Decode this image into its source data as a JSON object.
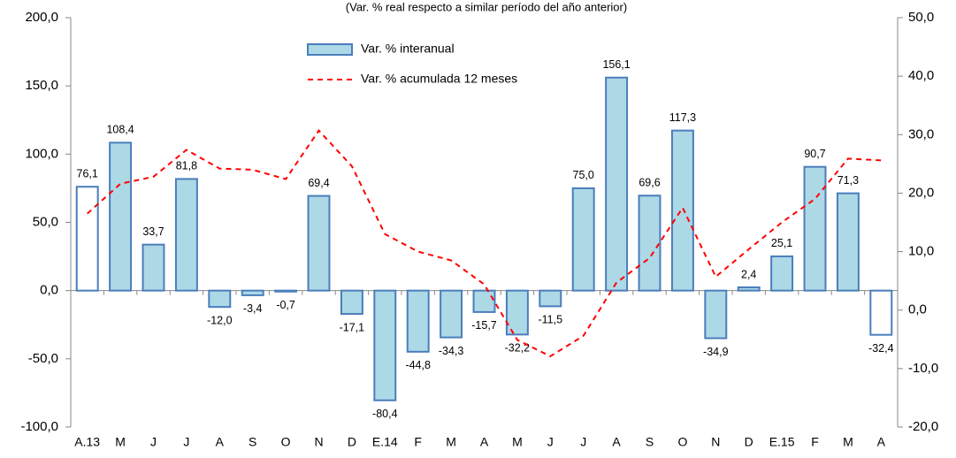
{
  "chart_data": {
    "type": "bar_line",
    "subtitle": "(Var. % real respecto a similar período del año anterior)",
    "categories": [
      "A.13",
      "M",
      "J",
      "J",
      "A",
      "S",
      "O",
      "N",
      "D",
      "E.14",
      "F",
      "M",
      "A",
      "M",
      "J",
      "J",
      "A",
      "S",
      "O",
      "N",
      "D",
      "E.15",
      "F",
      "M",
      "A"
    ],
    "series": [
      {
        "name": "Var. % interanual",
        "type": "bar",
        "color": "#add8e6",
        "edge": "#4a7ebb",
        "colors": [
          "#ffffff",
          "#add8e6",
          "#add8e6",
          "#add8e6",
          "#add8e6",
          "#add8e6",
          "#add8e6",
          "#add8e6",
          "#add8e6",
          "#add8e6",
          "#add8e6",
          "#add8e6",
          "#add8e6",
          "#add8e6",
          "#add8e6",
          "#add8e6",
          "#add8e6",
          "#add8e6",
          "#add8e6",
          "#add8e6",
          "#add8e6",
          "#add8e6",
          "#add8e6",
          "#add8e6",
          "#ffffff"
        ],
        "values": [
          76.1,
          108.4,
          33.7,
          81.8,
          -12.0,
          -3.4,
          -0.7,
          69.4,
          -17.1,
          -80.4,
          -44.8,
          -34.3,
          -15.7,
          -32.2,
          -11.5,
          75.0,
          156.1,
          69.6,
          117.3,
          -34.9,
          2.4,
          25.1,
          90.7,
          71.3,
          -32.4
        ],
        "value_labels": [
          "76,1",
          "108,4",
          "33,7",
          "81,8",
          "-12,0",
          "-3,4",
          "-0,7",
          "69,4",
          "-17,1",
          "-80,4",
          "-44,8",
          "-34,3",
          "-15,7",
          "-32,2",
          "-11,5",
          "75,0",
          "156,1",
          "69,6",
          "117,3",
          "-34,9",
          "2,4",
          "25,1",
          "90,7",
          "71,3",
          "-32,4"
        ]
      },
      {
        "name": "Var. % acumulada 12 meses",
        "type": "line",
        "axis": "y2",
        "color": "#ff0000",
        "line_style": "dashed",
        "values": [
          16.5,
          21.6,
          22.8,
          27.4,
          24.2,
          24.0,
          22.4,
          30.7,
          24.6,
          13.0,
          10.0,
          8.5,
          4.4,
          -5.1,
          -7.9,
          -4.4,
          4.7,
          8.9,
          17.5,
          5.7,
          10.4,
          15.0,
          19.0,
          25.9,
          25.6
        ]
      }
    ],
    "ylim": [
      -100,
      200
    ],
    "yticks": [
      {
        "value": -100,
        "label": "-100,0"
      },
      {
        "value": -50,
        "label": "-50,0"
      },
      {
        "value": 0,
        "label": "0,0"
      },
      {
        "value": 50,
        "label": "50,0"
      },
      {
        "value": 100,
        "label": "100,0"
      },
      {
        "value": 150,
        "label": "150,0"
      },
      {
        "value": 200,
        "label": "200,0"
      }
    ],
    "y2lim": [
      -20,
      50
    ],
    "y2ticks": [
      {
        "value": -20,
        "label": "-20,0"
      },
      {
        "value": -10,
        "label": "-10,0"
      },
      {
        "value": 0,
        "label": "0,0"
      },
      {
        "value": 10,
        "label": "10,0"
      },
      {
        "value": 20,
        "label": "20,0"
      },
      {
        "value": 30,
        "label": "30,0"
      },
      {
        "value": 40,
        "label": "40,0"
      },
      {
        "value": 50,
        "label": "50,0"
      }
    ],
    "legend": "upper-left"
  }
}
